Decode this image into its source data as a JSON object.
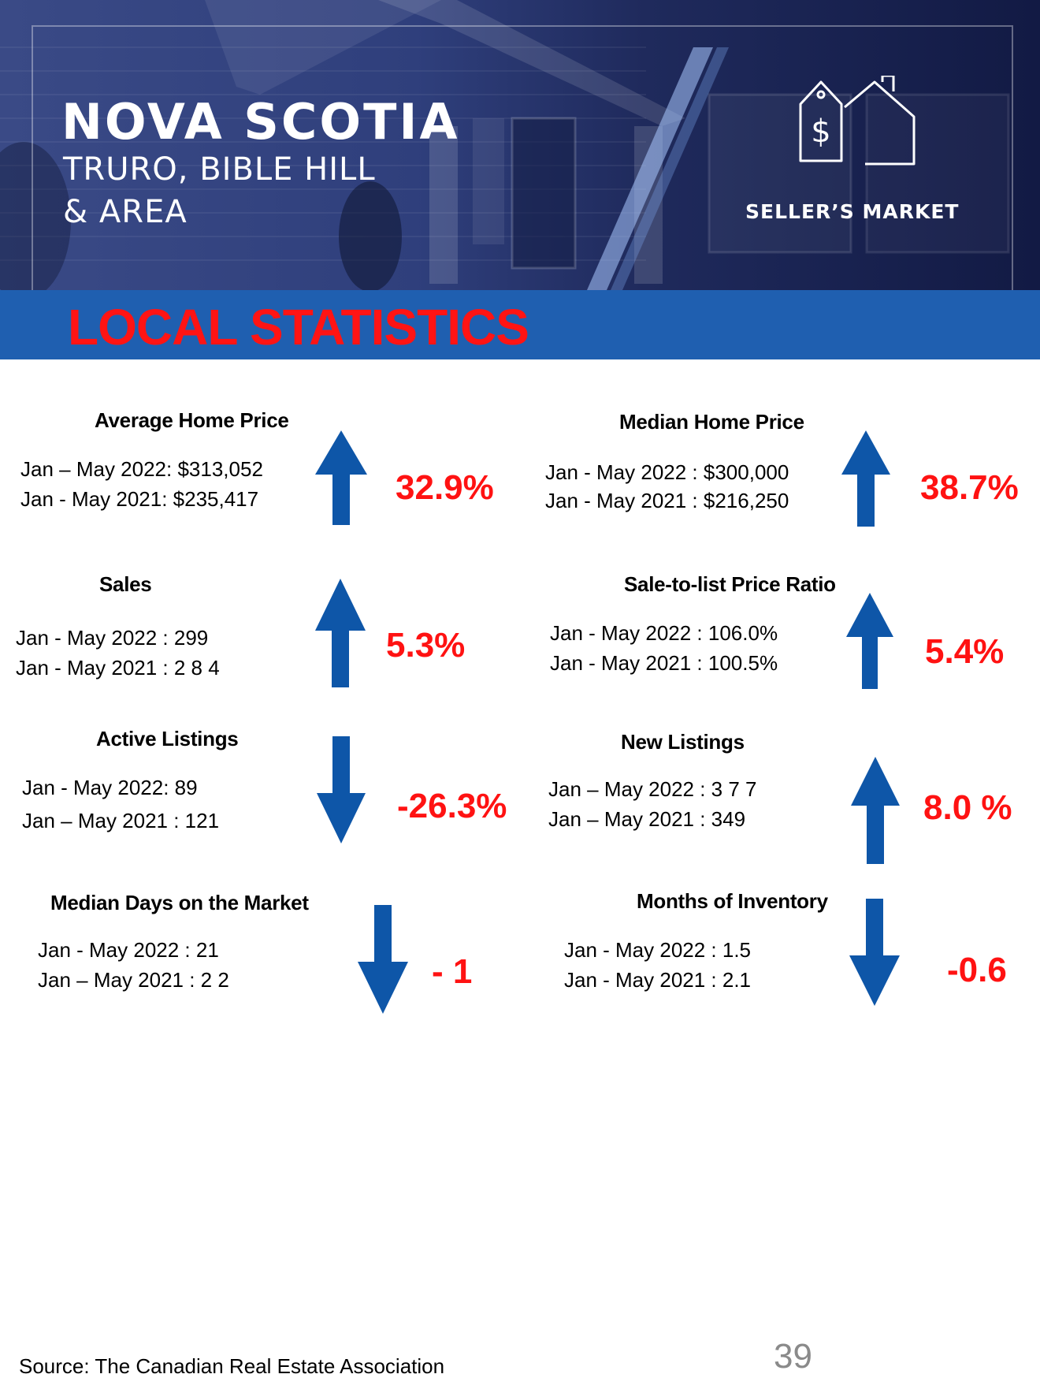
{
  "header": {
    "title": "NOVA SCOTIA",
    "subtitle_line1": "TRURO, BIBLE HILL",
    "subtitle_line2": "& AREA",
    "market_label": "SELLER’S MARKET",
    "icon": "house-price-tag-icon"
  },
  "section_title": "LOCAL STATISTICS",
  "stats": [
    {
      "title": "Average Home Price",
      "line1": "Jan – May 2022: $313,052",
      "line2": "Jan - May 2021:  $235,417",
      "change": "32.9%",
      "direction": "up"
    },
    {
      "title": "Median Home Price",
      "line1": "Jan - May 2022 : $300,000",
      "line2": "Jan - May 2021 :  $216,250",
      "change": "38.7%",
      "direction": "up"
    },
    {
      "title": "Sales",
      "line1": "Jan - May 2022 : 299",
      "line2": "Jan - May 2021 :  2 8 4",
      "change": "5.3%",
      "direction": "up"
    },
    {
      "title": "Sale-to-list Price Ratio",
      "line1": "Jan - May 2022 :  106.0%",
      "line2": "Jan - May 2021 :  100.5%",
      "change": "5.4%",
      "direction": "up"
    },
    {
      "title": "Active Listings",
      "line1": "Jan - May 2022: 89",
      "line2": "Jan – May 2021 :  121",
      "change": "-26.3%",
      "direction": "down"
    },
    {
      "title": "New Listings",
      "line1": "Jan – May 2022 :  3 7 7",
      "line2": "Jan – May 2021 : 349",
      "change": "8.0 %",
      "direction": "up"
    },
    {
      "title": "Median Days on the Market",
      "line1": "Jan - May 2022 :  21",
      "line2": "Jan – May  2021 :  2 2",
      "change": "- 1",
      "direction": "down"
    },
    {
      "title": "Months of Inventory",
      "line1": "Jan - May 2022 :  1.5",
      "line2": "Jan - May 2021 :  2.1",
      "change": "-0.6",
      "direction": "down"
    }
  ],
  "colors": {
    "arrow": "#0e56a8",
    "change": "#ff1212",
    "band": "#1f5fb0",
    "band_title": "#ff1414"
  },
  "footer": {
    "source": "Source: The Canadian Real Estate Association",
    "page_number": "39"
  }
}
